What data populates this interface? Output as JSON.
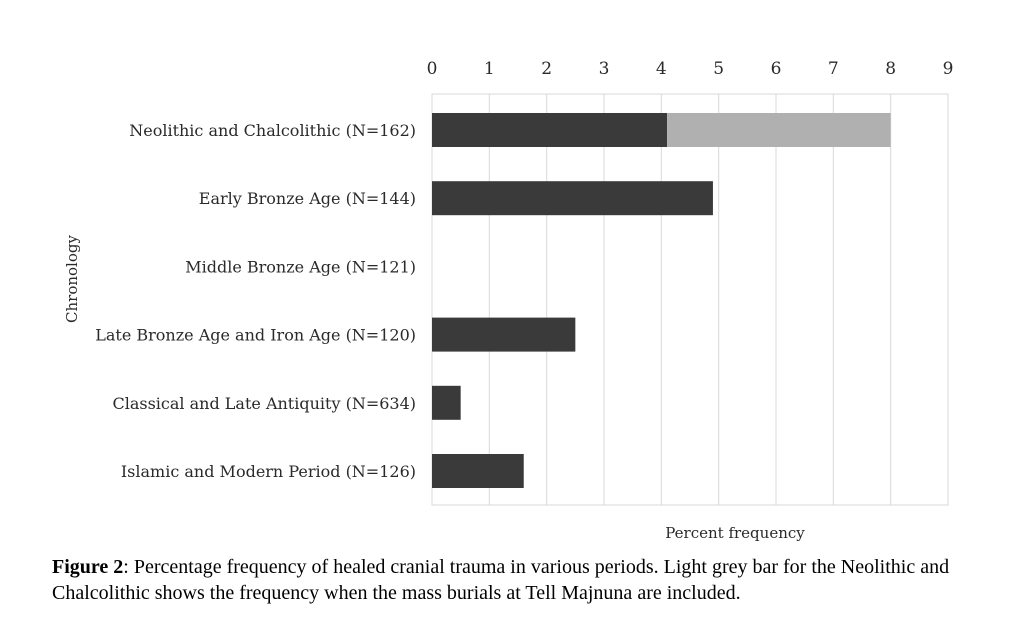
{
  "chart_data": {
    "type": "bar",
    "orientation": "horizontal",
    "stacked": true,
    "categories": [
      "Neolithic and Chalcolithic (N=162)",
      "Early Bronze Age (N=144)",
      "Middle Bronze Age (N=121)",
      "Late Bronze Age and Iron Age (N=120)",
      "Classical and Late Antiquity (N=634)",
      "Islamic and Modern Period (N=126)"
    ],
    "series": [
      {
        "values": [
          4.1,
          4.9,
          0,
          2.5,
          0.5,
          1.6
        ],
        "color": "#3a3a3a"
      },
      {
        "values": [
          3.9,
          0,
          0,
          0,
          0,
          0
        ],
        "color": "#b0b0b0"
      }
    ],
    "xticks": [
      "0",
      "1",
      "2",
      "3",
      "4",
      "5",
      "6",
      "7",
      "8",
      "9"
    ],
    "xlim": [
      0,
      9
    ],
    "xlabel": "Percent frequency",
    "ylabel": "Chronology",
    "x_axis_position": "top",
    "grid": true
  },
  "caption": {
    "label": "Figure 2",
    "text": ": Percentage frequency of healed cranial trauma in various periods. Light grey bar for the Neolithic and Chalcolithic shows the frequency when the mass burials at Tell Majnuna are included."
  }
}
